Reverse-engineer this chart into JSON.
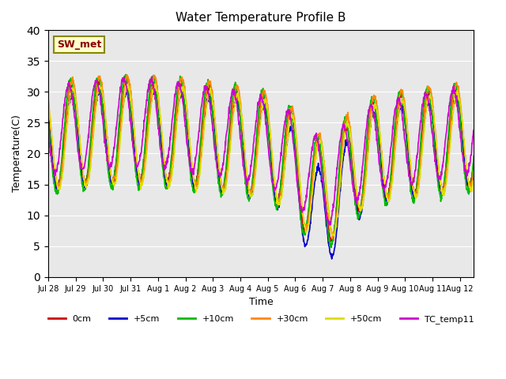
{
  "title": "Water Temperature Profile B",
  "xlabel": "Time",
  "ylabel": "Temperature(C)",
  "ylim": [
    0,
    40
  ],
  "yticks": [
    0,
    5,
    10,
    15,
    20,
    25,
    30,
    35,
    40
  ],
  "annotation": "SW_met",
  "plot_bg_color": "#e8e8e8",
  "legend_labels": [
    "0cm",
    "+5cm",
    "+10cm",
    "+30cm",
    "+50cm",
    "TC_temp11"
  ],
  "legend_colors": [
    "#cc0000",
    "#0000cc",
    "#00bb00",
    "#ff8800",
    "#dddd00",
    "#cc00cc"
  ],
  "xtick_labels": [
    "Jul 28",
    "Jul 29",
    "Jul 30",
    "Jul 31",
    "Aug 1",
    "Aug 2",
    "Aug 3",
    "Aug 4",
    "Aug 5",
    "Aug 6",
    "Aug 7",
    "Aug 8",
    "Aug 9",
    "Aug 10",
    "Aug 11",
    "Aug 12"
  ],
  "n_days": 15.5
}
